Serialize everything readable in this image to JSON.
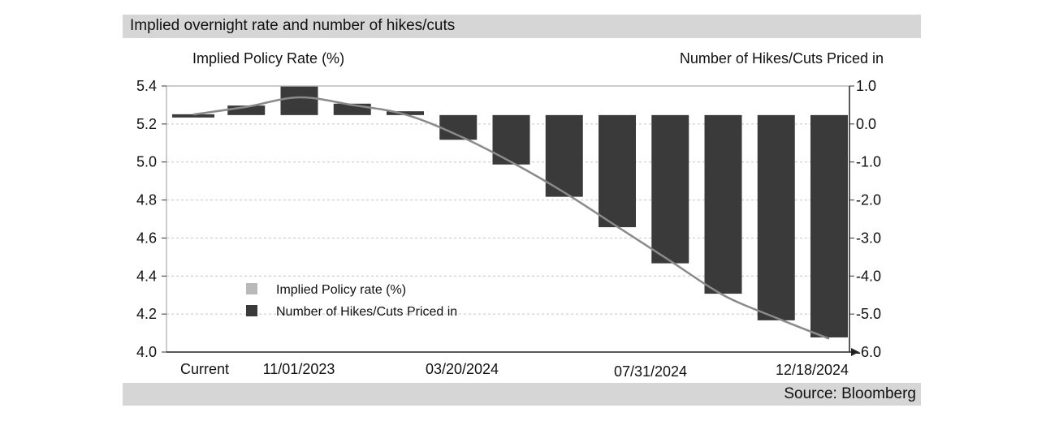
{
  "header": {
    "title": "Implied overnight rate and number of hikes/cuts"
  },
  "footer": {
    "source": "Source: Bloomberg"
  },
  "colors": {
    "bars": "#3a3a3a",
    "line": "#8a8a8a",
    "banner": "#d6d6d6"
  },
  "chart_data": {
    "type": "bar",
    "title": "Implied overnight rate and number of hikes/cuts",
    "ylabel_left": "Implied Policy Rate (%)",
    "ylabel_right": "Number of Hikes/Cuts Priced in",
    "y_left_ticks": [
      "5.4",
      "5.2",
      "5.0",
      "4.8",
      "4.6",
      "4.4",
      "4.2",
      "4.0"
    ],
    "y_right_ticks": [
      "1.0",
      "0.0",
      "-1.0",
      "-2.0",
      "-3.0",
      "-4.0",
      "-5.0",
      "-6.0"
    ],
    "ylim_left": [
      4.0,
      5.4
    ],
    "ylim_right": [
      -6.0,
      1.0
    ],
    "x_tick_labels": [
      "Current",
      "11/01/2023",
      "03/20/2024",
      "07/31/2024",
      "12/18/2024"
    ],
    "legend_position": "bottom-left",
    "series": [
      {
        "name": "Implied Policy rate (%)",
        "type": "line",
        "values": [
          5.25,
          5.29,
          5.34,
          5.3,
          5.25,
          5.14,
          5.0,
          4.84,
          4.66,
          4.48,
          4.3,
          4.18,
          4.07
        ]
      },
      {
        "name": "Number of Hikes/Cuts Priced in",
        "type": "bar",
        "values": [
          -0.05,
          0.25,
          0.75,
          0.3,
          0.1,
          -0.65,
          -1.3,
          -2.15,
          -2.95,
          -3.9,
          -4.7,
          -5.4,
          -5.85
        ]
      }
    ]
  }
}
